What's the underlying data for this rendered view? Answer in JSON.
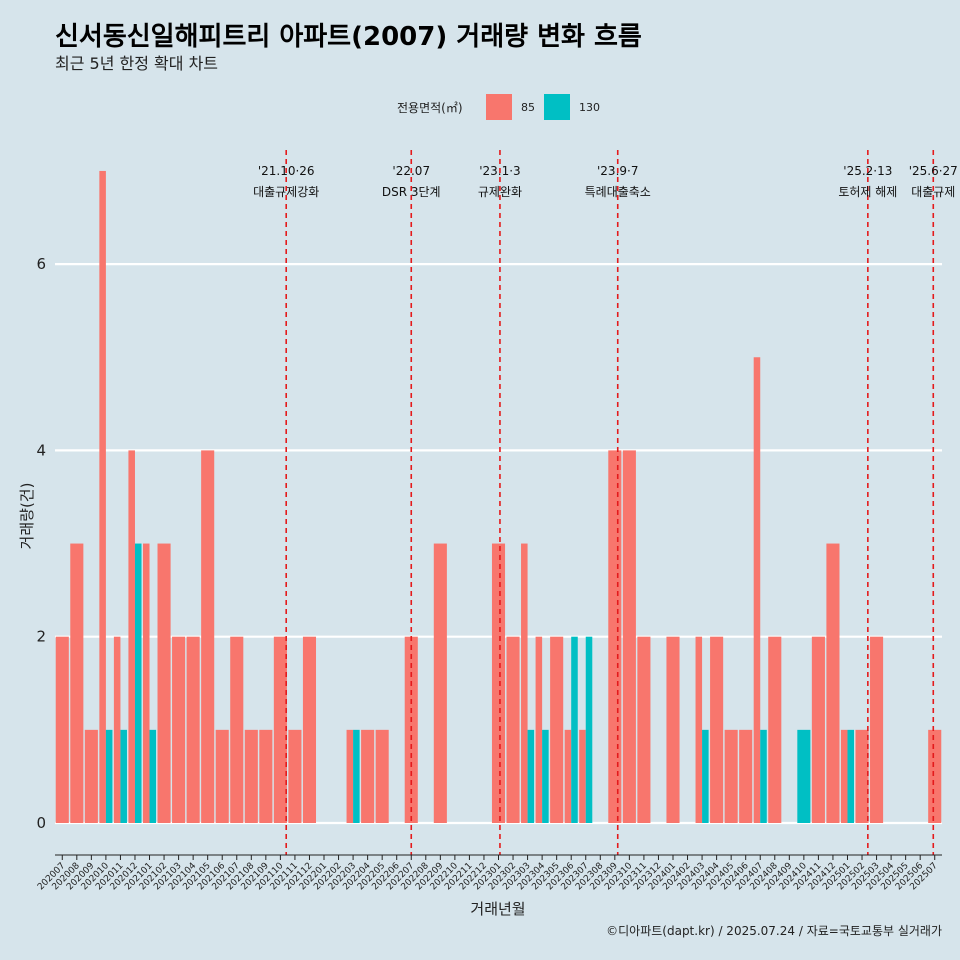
{
  "chart_data": {
    "type": "bar",
    "title": "신서동신일해피트리 아파트(2007) 거래량 변화 흐름",
    "subtitle": "최근 5년 한정 확대 차트",
    "xlabel": "거래년월",
    "ylabel": "거래량(건)",
    "ylim": [
      0,
      7.3
    ],
    "yticks": [
      0,
      2,
      4,
      6
    ],
    "legend": {
      "title": "전용면적(㎡)",
      "position": "top",
      "entries": [
        {
          "name": "85",
          "color": "#f8766d"
        },
        {
          "name": "130",
          "color": "#00bfc4"
        }
      ]
    },
    "categories": [
      "202007",
      "202008",
      "202009",
      "202010",
      "202011",
      "202012",
      "202101",
      "202102",
      "202103",
      "202104",
      "202105",
      "202106",
      "202107",
      "202108",
      "202109",
      "202110",
      "202111",
      "202112",
      "202201",
      "202202",
      "202203",
      "202204",
      "202205",
      "202206",
      "202207",
      "202208",
      "202209",
      "202210",
      "202211",
      "202212",
      "202301",
      "202302",
      "202303",
      "202304",
      "202305",
      "202306",
      "202307",
      "202308",
      "202309",
      "202310",
      "202311",
      "202312",
      "202401",
      "202402",
      "202403",
      "202404",
      "202405",
      "202406",
      "202407",
      "202408",
      "202409",
      "202410",
      "202411",
      "202412",
      "202501",
      "202502",
      "202503",
      "202504",
      "202505",
      "202506",
      "202507"
    ],
    "series": [
      {
        "name": "85",
        "color": "#f8766d",
        "values": [
          2,
          3,
          1,
          7,
          2,
          4,
          3,
          3,
          2,
          2,
          4,
          1,
          2,
          1,
          1,
          2,
          1,
          2,
          0,
          0,
          1,
          1,
          1,
          0,
          2,
          0,
          3,
          0,
          0,
          0,
          3,
          2,
          3,
          2,
          2,
          1,
          1,
          0,
          4,
          4,
          2,
          0,
          2,
          0,
          2,
          2,
          1,
          1,
          5,
          2,
          0,
          0,
          2,
          3,
          1,
          1,
          2,
          0,
          0,
          0,
          1
        ]
      },
      {
        "name": "130",
        "color": "#00bfc4",
        "values": [
          0,
          0,
          0,
          1,
          1,
          3,
          1,
          0,
          0,
          0,
          0,
          0,
          0,
          0,
          0,
          0,
          0,
          0,
          0,
          0,
          1,
          0,
          0,
          0,
          0,
          0,
          0,
          0,
          0,
          0,
          0,
          0,
          1,
          1,
          0,
          2,
          2,
          0,
          0,
          0,
          0,
          0,
          0,
          0,
          1,
          0,
          0,
          0,
          1,
          0,
          0,
          1,
          0,
          0,
          1,
          0,
          0,
          0,
          0,
          0,
          0
        ]
      }
    ],
    "events": [
      {
        "date": "'21.10·26",
        "label": "대출규제강화",
        "at": 15.4
      },
      {
        "date": "'22.07",
        "label": "DSR 3단계",
        "at": 24
      },
      {
        "date": "'23.1·3",
        "label": "규제완화",
        "at": 30.1
      },
      {
        "date": "'23.9·7",
        "label": "특례대출축소",
        "at": 38.2
      },
      {
        "date": "'25.2·13",
        "label": "토허제 해제",
        "at": 55.4
      },
      {
        "date": "'25.6·27",
        "label": "대출규제",
        "at": 59.9
      }
    ],
    "caption": "©디아파트(dapt.kr) / 2025.07.24 / 자료=국토교통부 실거래가"
  }
}
